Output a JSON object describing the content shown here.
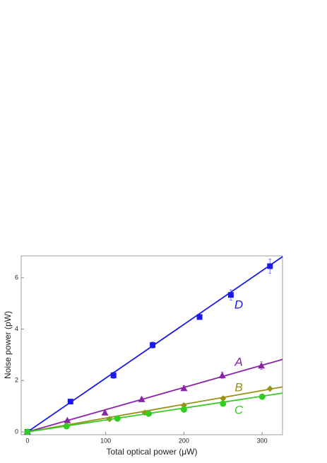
{
  "chart_data": {
    "type": "scatter",
    "xlabel": "Total optical power (μW)",
    "ylabel": "Noise power (pW)",
    "xlim": [
      -8,
      326
    ],
    "ylim": [
      -0.11,
      6.85
    ],
    "xticks": [
      0,
      100,
      200,
      300
    ],
    "yticks": [
      0,
      2,
      4,
      6
    ],
    "grid": false,
    "series": [
      {
        "name": "D",
        "color": "#1a1aee",
        "marker": "square",
        "x": [
          0,
          55,
          110,
          160,
          220,
          260,
          310
        ],
        "values": [
          0,
          1.18,
          2.2,
          3.38,
          4.47,
          5.33,
          6.45
        ],
        "errors": [
          0.03,
          0.06,
          0.12,
          0.12,
          0.1,
          0.2,
          0.28
        ],
        "fit": {
          "x": [
            0,
            326
          ],
          "values": [
            0,
            6.82
          ]
        }
      },
      {
        "name": "A",
        "color": "#8a22a8",
        "marker": "triangle",
        "x": [
          0,
          51,
          99,
          146,
          200,
          249,
          299
        ],
        "values": [
          0,
          0.45,
          0.75,
          1.27,
          1.7,
          2.2,
          2.58
        ],
        "errors": [
          0.03,
          0.05,
          0.06,
          0.08,
          0.1,
          0.13,
          0.15
        ],
        "fit": {
          "x": [
            0,
            326
          ],
          "values": [
            0,
            2.82
          ]
        }
      },
      {
        "name": "B",
        "color": "#999216",
        "marker": "diamond",
        "x": [
          0,
          50,
          105,
          150,
          200,
          250,
          310
        ],
        "values": [
          0,
          0.25,
          0.5,
          0.75,
          1.03,
          1.3,
          1.68
        ],
        "errors": [
          0.02,
          0.03,
          0.03,
          0.04,
          0.05,
          0.05,
          0.06
        ],
        "fit": {
          "x": [
            0,
            326
          ],
          "values": [
            0,
            1.75
          ]
        }
      },
      {
        "name": "C",
        "color": "#33cc22",
        "marker": "circle",
        "x": [
          0,
          50,
          115,
          155,
          200,
          250,
          300
        ],
        "values": [
          0,
          0.22,
          0.52,
          0.71,
          0.87,
          1.1,
          1.37
        ],
        "errors": [
          0.02,
          0.03,
          0.03,
          0.04,
          0.04,
          0.05,
          0.05
        ],
        "fit": {
          "x": [
            0,
            326
          ],
          "values": [
            0,
            1.51
          ]
        }
      }
    ]
  }
}
